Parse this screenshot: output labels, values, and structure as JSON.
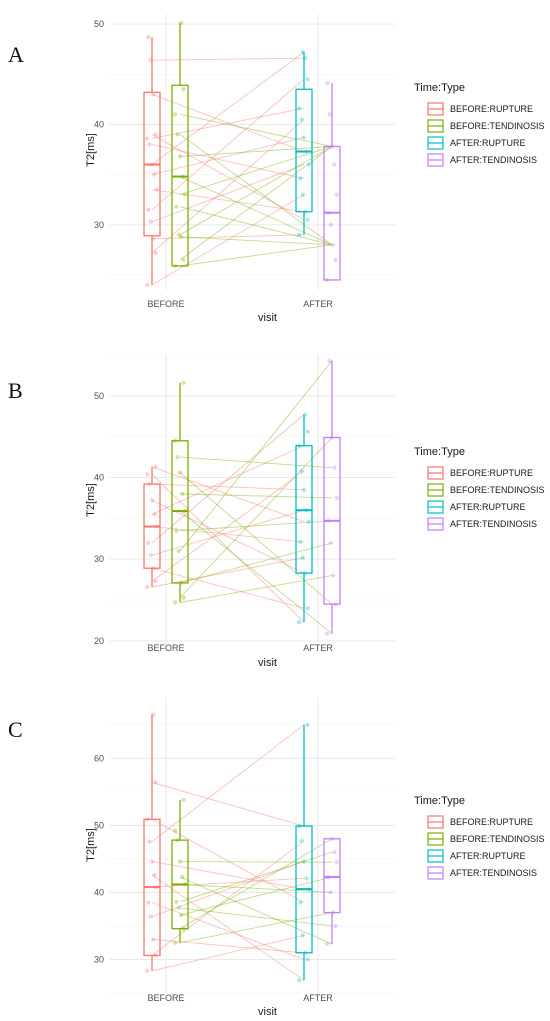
{
  "panels": [
    {
      "letter": "A",
      "xlabel": "visit",
      "ylabel": "T2[ms]",
      "yticks": [
        30,
        40,
        50
      ],
      "legend_title": "Time:Type"
    },
    {
      "letter": "B",
      "xlabel": "visit",
      "ylabel": "T2[ms]",
      "yticks": [
        20,
        30,
        40,
        50
      ],
      "legend_title": "Time:Type"
    },
    {
      "letter": "C",
      "xlabel": "visit",
      "ylabel": "T2[ms]",
      "yticks": [
        30,
        40,
        50,
        60
      ],
      "legend_title": "Time:Type"
    }
  ],
  "colors": {
    "BEFORE:RUPTURE": "#F8766D",
    "BEFORE:TENDINOSIS": "#7CAE00",
    "AFTER:RUPTURE": "#00BFC4",
    "AFTER:TENDINOSIS": "#C77CFF"
  },
  "chart_data": [
    {
      "type": "box",
      "categories": [
        "BEFORE",
        "AFTER"
      ],
      "xlabel": "visit",
      "ylabel": "T2[ms]",
      "ylim": [
        23.5,
        51
      ],
      "legend_title": "Time:Type",
      "legend_position": "right",
      "grid": true,
      "series": [
        {
          "name": "BEFORE:RUPTURE",
          "visit": "BEFORE",
          "min": 24.0,
          "q1": 28.9,
          "median": 36.0,
          "q3": 43.2,
          "max": 48.7,
          "points": [
            24.0,
            27.2,
            28.6,
            30.3,
            31.5,
            33.5,
            35.0,
            36.0,
            38.0,
            38.6,
            39.0,
            43.0,
            46.4,
            48.7
          ]
        },
        {
          "name": "BEFORE:TENDINOSIS",
          "visit": "BEFORE",
          "min": 25.9,
          "q1": 25.9,
          "median": 34.8,
          "q3": 43.9,
          "max": 50.1,
          "points": [
            25.9,
            26.5,
            28.8,
            29.0,
            31.8,
            33.0,
            34.8,
            36.8,
            39.0,
            41.0,
            43.5,
            50.1
          ]
        },
        {
          "name": "AFTER:RUPTURE",
          "visit": "AFTER",
          "min": 29.0,
          "q1": 31.3,
          "median": 37.3,
          "q3": 43.5,
          "max": 47.2,
          "points": [
            29.0,
            30.5,
            31.3,
            33.0,
            34.6,
            36.0,
            37.3,
            38.7,
            40.5,
            41.6,
            44.5,
            46.6,
            47.2
          ]
        },
        {
          "name": "AFTER:TENDINOSIS",
          "visit": "AFTER",
          "min": 24.5,
          "q1": 24.5,
          "median": 31.2,
          "q3": 37.8,
          "max": 44.1,
          "points": [
            24.5,
            26.5,
            28.0,
            30.0,
            31.2,
            33.0,
            36.0,
            37.8,
            41.0,
            44.1
          ]
        }
      ]
    },
    {
      "type": "box",
      "categories": [
        "BEFORE",
        "AFTER"
      ],
      "xlabel": "visit",
      "ylabel": "T2[ms]",
      "ylim": [
        19.5,
        55
      ],
      "legend_title": "Time:Type",
      "legend_position": "right",
      "grid": true,
      "series": [
        {
          "name": "BEFORE:RUPTURE",
          "visit": "BEFORE",
          "min": 26.6,
          "q1": 28.9,
          "median": 34.0,
          "q3": 39.2,
          "max": 41.3,
          "points": [
            26.6,
            27.3,
            28.9,
            30.5,
            32.0,
            34.0,
            35.5,
            37.2,
            39.2,
            40.4,
            41.3
          ]
        },
        {
          "name": "BEFORE:TENDINOSIS",
          "visit": "BEFORE",
          "min": 24.7,
          "q1": 27.1,
          "median": 35.9,
          "q3": 44.5,
          "max": 51.6,
          "points": [
            24.7,
            25.3,
            27.1,
            31.0,
            33.5,
            35.9,
            38.0,
            40.6,
            42.5,
            44.5,
            51.6
          ]
        },
        {
          "name": "AFTER:RUPTURE",
          "visit": "AFTER",
          "min": 22.3,
          "q1": 28.3,
          "median": 36.0,
          "q3": 43.9,
          "max": 47.7,
          "points": [
            22.3,
            24.0,
            28.3,
            30.2,
            32.1,
            34.6,
            36.0,
            38.5,
            40.8,
            43.9,
            45.6,
            47.7
          ]
        },
        {
          "name": "AFTER:TENDINOSIS",
          "visit": "AFTER",
          "min": 20.9,
          "q1": 24.5,
          "median": 34.7,
          "q3": 44.9,
          "max": 54.3,
          "points": [
            20.9,
            24.5,
            28.0,
            32.0,
            34.7,
            37.5,
            41.2,
            44.9,
            54.3
          ]
        }
      ]
    },
    {
      "type": "box",
      "categories": [
        "BEFORE",
        "AFTER"
      ],
      "xlabel": "visit",
      "ylabel": "T2[ms]",
      "ylim": [
        25,
        69
      ],
      "legend_title": "Time:Type",
      "legend_position": "right",
      "grid": true,
      "series": [
        {
          "name": "BEFORE:RUPTURE",
          "visit": "BEFORE",
          "min": 28.3,
          "q1": 30.6,
          "median": 40.8,
          "q3": 50.9,
          "max": 66.5,
          "points": [
            28.3,
            30.6,
            33.0,
            36.4,
            38.5,
            40.8,
            42.6,
            44.6,
            47.6,
            50.9,
            56.4,
            66.5
          ]
        },
        {
          "name": "BEFORE:TENDINOSIS",
          "visit": "BEFORE",
          "min": 32.5,
          "q1": 34.6,
          "median": 41.2,
          "q3": 47.8,
          "max": 53.8,
          "points": [
            32.5,
            34.6,
            36.6,
            37.7,
            38.6,
            41.2,
            42.3,
            44.6,
            47.8,
            49.2,
            53.8
          ]
        },
        {
          "name": "AFTER:RUPTURE",
          "visit": "AFTER",
          "min": 26.9,
          "q1": 31.0,
          "median": 40.5,
          "q3": 49.9,
          "max": 65.0,
          "points": [
            26.9,
            30.0,
            31.0,
            33.6,
            38.5,
            40.5,
            42.1,
            44.6,
            47.7,
            49.9,
            65.0
          ]
        },
        {
          "name": "AFTER:TENDINOSIS",
          "visit": "AFTER",
          "min": 32.3,
          "q1": 37.0,
          "median": 42.3,
          "q3": 48.0,
          "max": 48.0,
          "points": [
            32.3,
            35.0,
            37.0,
            40.0,
            42.3,
            44.5,
            46.0,
            48.0
          ]
        }
      ]
    }
  ]
}
